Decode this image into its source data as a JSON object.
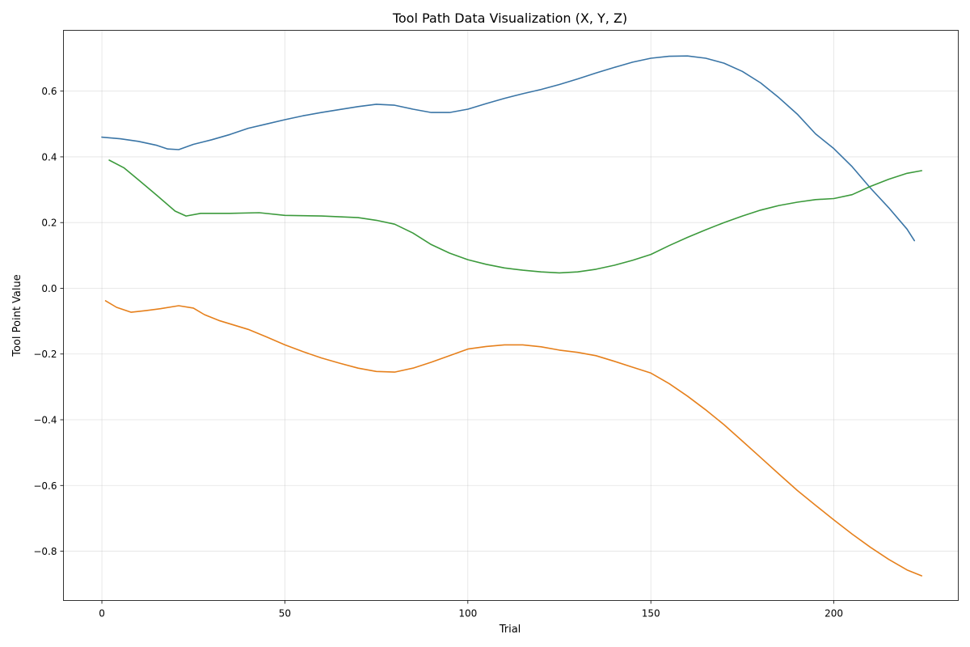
{
  "chart_data": {
    "type": "line",
    "title": "Tool Path Data Visualization (X, Y, Z)",
    "xlabel": "Trial",
    "ylabel": "Tool Point Value",
    "xlim": [
      -10.5,
      234
    ],
    "ylim": [
      -0.95,
      0.785
    ],
    "xticks": [
      0,
      50,
      100,
      150,
      200
    ],
    "yticks": [
      -0.8,
      -0.6,
      -0.4,
      -0.2,
      0.0,
      0.2,
      0.4,
      0.6
    ],
    "ytick_labels": [
      "−0.8",
      "−0.6",
      "−0.4",
      "−0.2",
      "0.0",
      "0.2",
      "0.4",
      "0.6"
    ],
    "grid": true,
    "series": [
      {
        "color": "#3a75a6",
        "points": [
          [
            0,
            0.46
          ],
          [
            5,
            0.455
          ],
          [
            10,
            0.447
          ],
          [
            15,
            0.435
          ],
          [
            18,
            0.424
          ],
          [
            21,
            0.422
          ],
          [
            25,
            0.438
          ],
          [
            30,
            0.452
          ],
          [
            35,
            0.468
          ],
          [
            40,
            0.487
          ],
          [
            45,
            0.5
          ],
          [
            50,
            0.513
          ],
          [
            55,
            0.525
          ],
          [
            60,
            0.535
          ],
          [
            65,
            0.544
          ],
          [
            70,
            0.553
          ],
          [
            75,
            0.56
          ],
          [
            80,
            0.557
          ],
          [
            85,
            0.545
          ],
          [
            90,
            0.535
          ],
          [
            95,
            0.535
          ],
          [
            100,
            0.545
          ],
          [
            105,
            0.562
          ],
          [
            110,
            0.578
          ],
          [
            115,
            0.592
          ],
          [
            120,
            0.605
          ],
          [
            125,
            0.62
          ],
          [
            130,
            0.637
          ],
          [
            135,
            0.655
          ],
          [
            140,
            0.672
          ],
          [
            145,
            0.688
          ],
          [
            150,
            0.7
          ],
          [
            155,
            0.706
          ],
          [
            160,
            0.707
          ],
          [
            165,
            0.7
          ],
          [
            170,
            0.685
          ],
          [
            175,
            0.66
          ],
          [
            180,
            0.625
          ],
          [
            185,
            0.58
          ],
          [
            190,
            0.53
          ],
          [
            195,
            0.47
          ],
          [
            200,
            0.425
          ],
          [
            205,
            0.37
          ],
          [
            210,
            0.305
          ],
          [
            215,
            0.245
          ],
          [
            220,
            0.18
          ],
          [
            222,
            0.145
          ]
        ]
      },
      {
        "color": "#3c9a3c",
        "points": [
          [
            2,
            0.39
          ],
          [
            6,
            0.367
          ],
          [
            10,
            0.33
          ],
          [
            15,
            0.283
          ],
          [
            20,
            0.235
          ],
          [
            23,
            0.22
          ],
          [
            27,
            0.228
          ],
          [
            35,
            0.228
          ],
          [
            43,
            0.23
          ],
          [
            50,
            0.222
          ],
          [
            60,
            0.22
          ],
          [
            70,
            0.215
          ],
          [
            75,
            0.207
          ],
          [
            80,
            0.195
          ],
          [
            85,
            0.168
          ],
          [
            90,
            0.133
          ],
          [
            95,
            0.107
          ],
          [
            100,
            0.087
          ],
          [
            105,
            0.073
          ],
          [
            110,
            0.062
          ],
          [
            115,
            0.055
          ],
          [
            120,
            0.05
          ],
          [
            125,
            0.047
          ],
          [
            130,
            0.05
          ],
          [
            135,
            0.058
          ],
          [
            140,
            0.07
          ],
          [
            145,
            0.085
          ],
          [
            150,
            0.103
          ],
          [
            155,
            0.13
          ],
          [
            160,
            0.155
          ],
          [
            165,
            0.178
          ],
          [
            170,
            0.2
          ],
          [
            175,
            0.22
          ],
          [
            180,
            0.238
          ],
          [
            185,
            0.252
          ],
          [
            190,
            0.262
          ],
          [
            195,
            0.27
          ],
          [
            200,
            0.273
          ],
          [
            205,
            0.285
          ],
          [
            210,
            0.31
          ],
          [
            215,
            0.332
          ],
          [
            220,
            0.35
          ],
          [
            224,
            0.358
          ]
        ]
      },
      {
        "color": "#e6801c",
        "points": [
          [
            1,
            -0.038
          ],
          [
            4,
            -0.058
          ],
          [
            8,
            -0.073
          ],
          [
            12,
            -0.068
          ],
          [
            16,
            -0.062
          ],
          [
            21,
            -0.053
          ],
          [
            25,
            -0.06
          ],
          [
            28,
            -0.08
          ],
          [
            32,
            -0.098
          ],
          [
            40,
            -0.125
          ],
          [
            45,
            -0.148
          ],
          [
            50,
            -0.172
          ],
          [
            55,
            -0.193
          ],
          [
            60,
            -0.212
          ],
          [
            65,
            -0.228
          ],
          [
            70,
            -0.243
          ],
          [
            75,
            -0.253
          ],
          [
            80,
            -0.255
          ],
          [
            85,
            -0.243
          ],
          [
            90,
            -0.225
          ],
          [
            95,
            -0.205
          ],
          [
            100,
            -0.185
          ],
          [
            105,
            -0.177
          ],
          [
            110,
            -0.172
          ],
          [
            115,
            -0.172
          ],
          [
            120,
            -0.178
          ],
          [
            125,
            -0.188
          ],
          [
            130,
            -0.195
          ],
          [
            135,
            -0.205
          ],
          [
            140,
            -0.222
          ],
          [
            145,
            -0.24
          ],
          [
            150,
            -0.258
          ],
          [
            155,
            -0.29
          ],
          [
            160,
            -0.328
          ],
          [
            165,
            -0.37
          ],
          [
            170,
            -0.415
          ],
          [
            175,
            -0.465
          ],
          [
            180,
            -0.515
          ],
          [
            185,
            -0.565
          ],
          [
            190,
            -0.615
          ],
          [
            195,
            -0.66
          ],
          [
            200,
            -0.705
          ],
          [
            205,
            -0.748
          ],
          [
            210,
            -0.788
          ],
          [
            215,
            -0.825
          ],
          [
            220,
            -0.857
          ],
          [
            224,
            -0.875
          ]
        ]
      }
    ]
  }
}
